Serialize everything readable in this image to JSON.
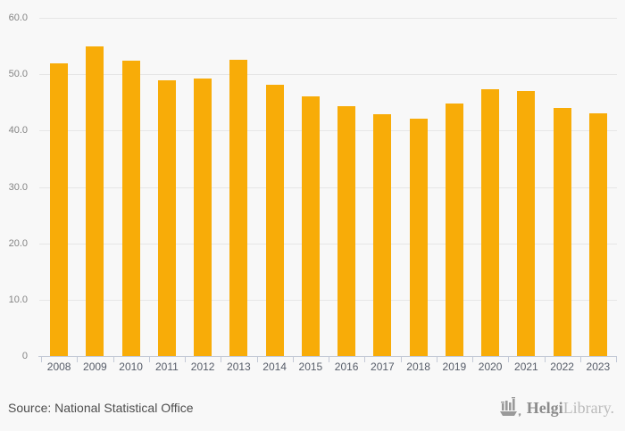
{
  "chart_data": {
    "type": "bar",
    "title": "",
    "xlabel": "",
    "ylabel": "",
    "categories": [
      "2008",
      "2009",
      "2010",
      "2011",
      "2012",
      "2013",
      "2014",
      "2015",
      "2016",
      "2017",
      "2018",
      "2019",
      "2020",
      "2021",
      "2022",
      "2023"
    ],
    "values": [
      52.0,
      55.0,
      52.4,
      48.9,
      49.2,
      52.6,
      48.1,
      46.0,
      44.3,
      42.9,
      42.1,
      44.8,
      47.3,
      47.0,
      44.0,
      43.0
    ],
    "ylim": [
      0,
      60
    ],
    "yticks": [
      0,
      10,
      20,
      30,
      40,
      50,
      60
    ],
    "ytick_labels": [
      "0",
      "10.0",
      "20.0",
      "30.0",
      "40.0",
      "50.0",
      "60.0"
    ],
    "grid": true,
    "legend": false,
    "bar_color": "#F8AC08",
    "grid_color": "#E6E6E6",
    "axis_color": "#C3C9D6",
    "ytick_label_color": "#848484",
    "xtick_label_color": "#565C68",
    "background": "#F8F8F8"
  },
  "footer": {
    "source": "Source: National Statistical Office",
    "brand_bold": "Helgi",
    "brand_light": "Library.",
    "source_color": "#4D4D4D",
    "brand_bold_color": "#8C8C8C",
    "brand_light_color": "#BBBBBB",
    "logo_color": "#9A9A9A"
  }
}
